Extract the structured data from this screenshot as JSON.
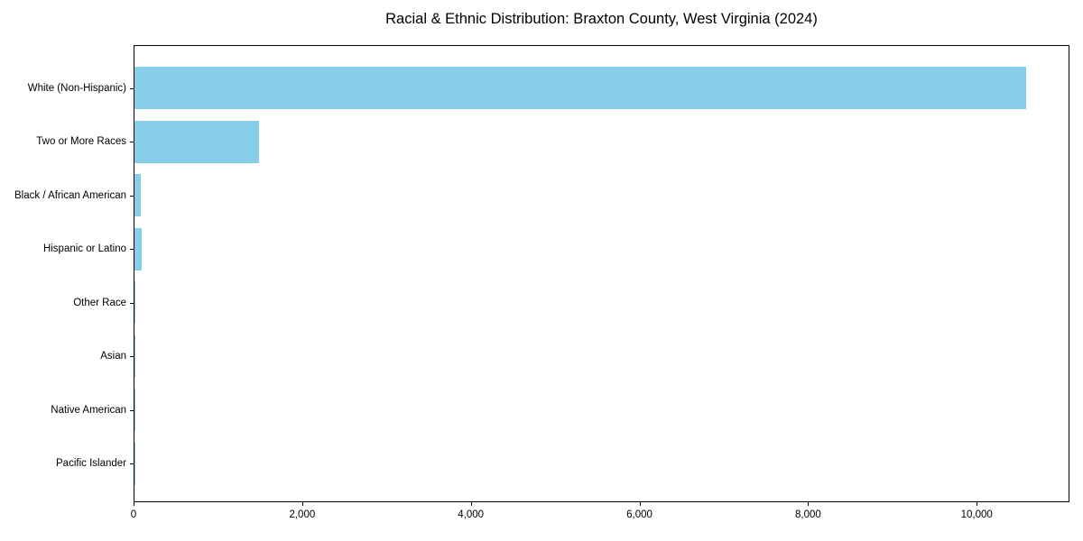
{
  "page": {
    "background": "#ffffff"
  },
  "chart_data": {
    "type": "bar",
    "orientation": "horizontal",
    "title": "Racial & Ethnic Distribution: Braxton County, West Virginia (2024)",
    "categories": [
      "White (Non-Hispanic)",
      "Two or More Races",
      "Black / African American",
      "Hispanic or Latino",
      "Other Race",
      "Asian",
      "Native American",
      "Pacific Islander"
    ],
    "values": [
      10575,
      1480,
      75,
      90,
      12,
      10,
      5,
      2
    ],
    "xlabel": "",
    "ylabel": "",
    "xlim": [
      0,
      11100
    ],
    "xticks": [
      0,
      2000,
      4000,
      6000,
      8000,
      10000
    ],
    "xtick_labels": [
      "0",
      "2,000",
      "4,000",
      "6,000",
      "8,000",
      "10,000"
    ],
    "bar_color": "#87CEEB",
    "axis_color": "#000000",
    "text_color": "#000000",
    "grid": false,
    "legend": "none"
  }
}
